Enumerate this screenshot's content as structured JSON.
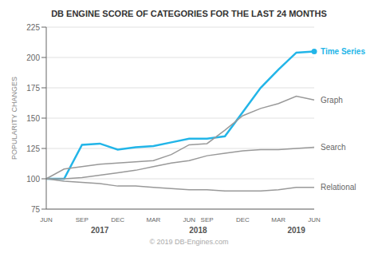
{
  "chart_data": {
    "type": "line",
    "title": "DB ENGINE SCORE OF CATEGORIES FOR THE LAST 24 MONTHS",
    "y_label": "POPULARITY CHANGES",
    "categories": [
      "JUN",
      null,
      "SEP",
      null,
      "DEC",
      null,
      "MAR",
      null,
      "JUN",
      "SEP",
      null,
      "DEC",
      null,
      "MAR",
      null,
      "JUN"
    ],
    "series": [
      {
        "name": "Time Series",
        "color": "#22b5e8",
        "values": [
          100,
          100,
          128,
          129,
          124,
          126,
          127,
          130,
          133,
          133,
          135,
          155,
          175,
          190,
          204,
          205
        ]
      },
      {
        "name": "Graph",
        "color": "#999999",
        "values": [
          100,
          108,
          110,
          112,
          113,
          114,
          115,
          120,
          128,
          129,
          140,
          152,
          158,
          162,
          168,
          165
        ]
      },
      {
        "name": "Search",
        "color": "#999999",
        "values": [
          100,
          100,
          101,
          103,
          105,
          107,
          110,
          113,
          115,
          119,
          121,
          123,
          124,
          124,
          125,
          126
        ]
      },
      {
        "name": "Relational",
        "color": "#999999",
        "values": [
          100,
          98,
          97,
          96,
          94,
          94,
          93,
          92,
          91,
          91,
          90,
          90,
          90,
          91,
          93,
          93
        ]
      }
    ],
    "ylim": [
      75,
      225
    ],
    "yticks": [
      75,
      100,
      125,
      150,
      175,
      200,
      225
    ],
    "grid": true,
    "annotations": [
      "2017",
      "2018",
      "2019",
      "© 2019 DB-Engines.com"
    ]
  }
}
